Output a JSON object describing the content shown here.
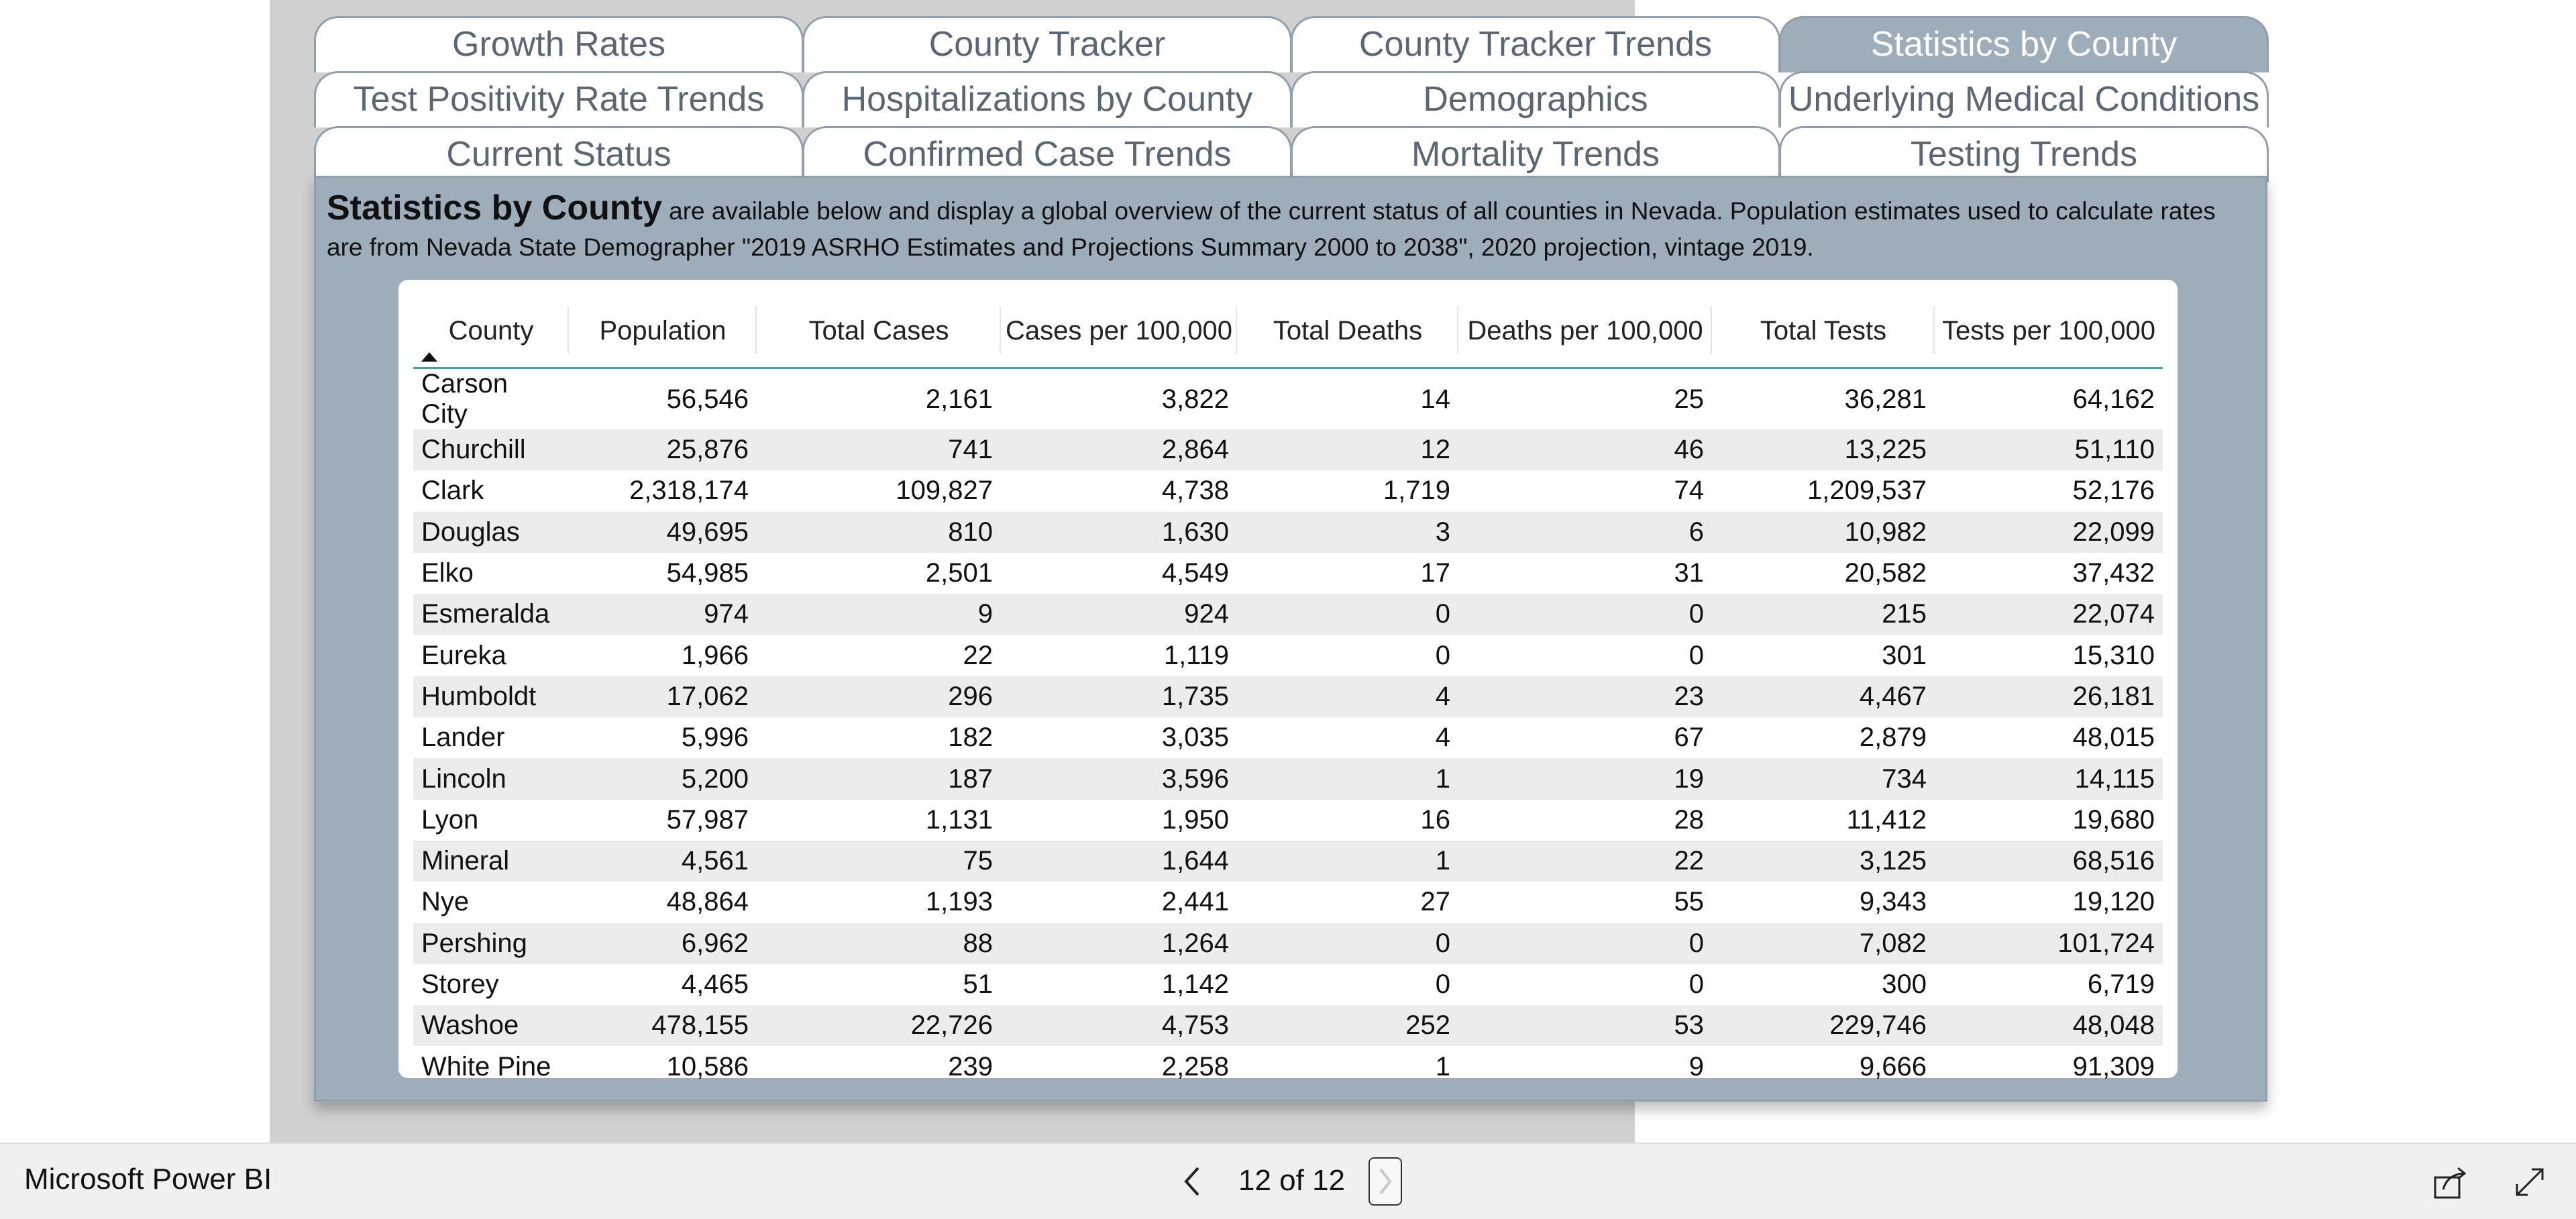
{
  "tabs": {
    "row1": [
      "Growth Rates",
      "County Tracker",
      "County Tracker Trends",
      "Statistics by County"
    ],
    "row2": [
      "Test Positivity Rate Trends",
      "Hospitalizations by County",
      "Demographics",
      "Underlying Medical Conditions"
    ],
    "row3": [
      "Current Status",
      "Confirmed Case Trends",
      "Mortality Trends",
      "Testing Trends"
    ],
    "active": "Statistics by County"
  },
  "intro": {
    "heading": "Statistics by County",
    "line1": " are available below and display a global overview of the current status of all counties in Nevada.  Population estimates used to calculate rates",
    "line2": "are from Nevada State Demographer \"2019 ASRHO Estimates and Projections Summary 2000 to 2038\", 2020 projection, vintage 2019."
  },
  "table": {
    "columns": [
      "County",
      "Population",
      "Total Cases",
      "Cases per 100,000",
      "Total Deaths",
      "Deaths per 100,000",
      "Total Tests",
      "Tests per 100,000"
    ],
    "rows": [
      [
        "Carson City",
        "56,546",
        "2,161",
        "3,822",
        "14",
        "25",
        "36,281",
        "64,162"
      ],
      [
        "Churchill",
        "25,876",
        "741",
        "2,864",
        "12",
        "46",
        "13,225",
        "51,110"
      ],
      [
        "Clark",
        "2,318,174",
        "109,827",
        "4,738",
        "1,719",
        "74",
        "1,209,537",
        "52,176"
      ],
      [
        "Douglas",
        "49,695",
        "810",
        "1,630",
        "3",
        "6",
        "10,982",
        "22,099"
      ],
      [
        "Elko",
        "54,985",
        "2,501",
        "4,549",
        "17",
        "31",
        "20,582",
        "37,432"
      ],
      [
        "Esmeralda",
        "974",
        "9",
        "924",
        "0",
        "0",
        "215",
        "22,074"
      ],
      [
        "Eureka",
        "1,966",
        "22",
        "1,119",
        "0",
        "0",
        "301",
        "15,310"
      ],
      [
        "Humboldt",
        "17,062",
        "296",
        "1,735",
        "4",
        "23",
        "4,467",
        "26,181"
      ],
      [
        "Lander",
        "5,996",
        "182",
        "3,035",
        "4",
        "67",
        "2,879",
        "48,015"
      ],
      [
        "Lincoln",
        "5,200",
        "187",
        "3,596",
        "1",
        "19",
        "734",
        "14,115"
      ],
      [
        "Lyon",
        "57,987",
        "1,131",
        "1,950",
        "16",
        "28",
        "11,412",
        "19,680"
      ],
      [
        "Mineral",
        "4,561",
        "75",
        "1,644",
        "1",
        "22",
        "3,125",
        "68,516"
      ],
      [
        "Nye",
        "48,864",
        "1,193",
        "2,441",
        "27",
        "55",
        "9,343",
        "19,120"
      ],
      [
        "Pershing",
        "6,962",
        "88",
        "1,264",
        "0",
        "0",
        "7,082",
        "101,724"
      ],
      [
        "Storey",
        "4,465",
        "51",
        "1,142",
        "0",
        "0",
        "300",
        "6,719"
      ],
      [
        "Washoe",
        "478,155",
        "22,726",
        "4,753",
        "252",
        "53",
        "229,746",
        "48,048"
      ],
      [
        "White Pine",
        "10,586",
        "239",
        "2,258",
        "1",
        "9",
        "9,666",
        "91,309"
      ]
    ]
  },
  "footer": {
    "brand": "Microsoft Power BI",
    "page_indicator": "12 of 12"
  },
  "icons": {
    "prev": "chevron-left-icon",
    "next": "chevron-right-icon",
    "share": "share-icon",
    "expand": "expand-icon"
  },
  "colors": {
    "panel": "#9eadba",
    "accent_underline": "#26a8be",
    "canvas": "#d0d0d0"
  }
}
